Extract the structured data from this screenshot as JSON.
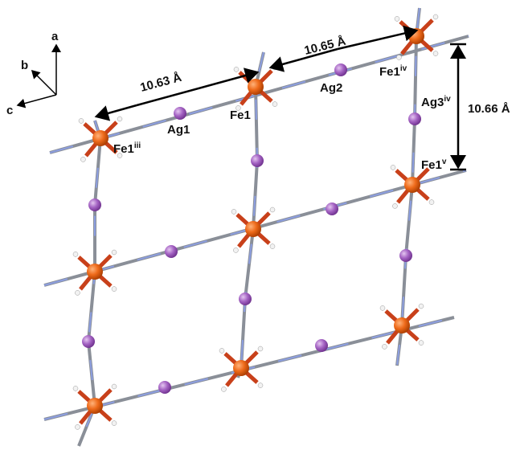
{
  "axes_labels": {
    "a": "a",
    "b": "b",
    "c": "c"
  },
  "distances": {
    "horizontal_1": "10.63 Å",
    "horizontal_2": "10.65 Å",
    "vertical": "10.66 Å"
  },
  "atom_labels": {
    "fe1": {
      "text": "Fe1"
    },
    "fe1_iii": {
      "text": "Fe1",
      "sup": "iii"
    },
    "ag1": {
      "text": "Ag1"
    },
    "ag2": {
      "text": "Ag2"
    },
    "fe1_iv": {
      "text": "Fe1",
      "sup": "iv"
    },
    "ag3_iv": {
      "text": "Ag3",
      "sup": "iv"
    },
    "fe1_v": {
      "text": "Fe1",
      "sup": "v"
    }
  }
}
